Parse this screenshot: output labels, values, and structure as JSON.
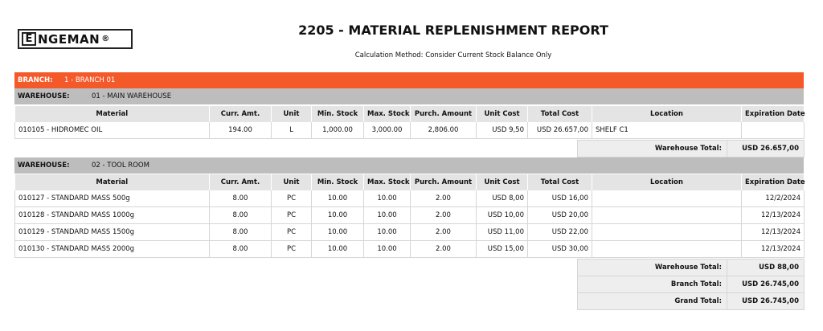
{
  "logo": {
    "e_letter": "E",
    "text": "NGEMAN",
    "reg": "®"
  },
  "report": {
    "title": "2205 - MATERIAL REPLENISHMENT REPORT",
    "subtitle": "Calculation Method: Consider Current Stock Balance Only"
  },
  "branch": {
    "label": "BRANCH:",
    "value": "1 - BRANCH 01"
  },
  "columns": [
    "Material",
    "Curr. Amt.",
    "Unit",
    "Min. Stock",
    "Max. Stock",
    "Purch. Amount",
    "Unit Cost",
    "Total Cost",
    "Location",
    "Expiration Date"
  ],
  "warehouses": [
    {
      "label": "WAREHOUSE:",
      "value": "01 - MAIN WAREHOUSE",
      "rows": [
        [
          "010105 - HIDROMEC OIL",
          "194.00",
          "L",
          "1,000.00",
          "3,000.00",
          "2,806.00",
          "USD 9,50",
          "USD 26.657,00",
          "SHELF C1",
          ""
        ]
      ],
      "total_label": "Warehouse Total:",
      "total_value": "USD 26.657,00"
    },
    {
      "label": "WAREHOUSE:",
      "value": "02 - TOOL ROOM",
      "rows": [
        [
          "010127 - STANDARD MASS 500g",
          "8.00",
          "PC",
          "10.00",
          "10.00",
          "2.00",
          "USD 8,00",
          "USD 16,00",
          "",
          "12/2/2024"
        ],
        [
          "010128 - STANDARD MASS 1000g",
          "8.00",
          "PC",
          "10.00",
          "10.00",
          "2.00",
          "USD 10,00",
          "USD 20,00",
          "",
          "12/13/2024"
        ],
        [
          "010129 - STANDARD MASS 1500g",
          "8.00",
          "PC",
          "10.00",
          "10.00",
          "2.00",
          "USD 11,00",
          "USD 22,00",
          "",
          "12/13/2024"
        ],
        [
          "010130 - STANDARD MASS 2000g",
          "8.00",
          "PC",
          "10.00",
          "10.00",
          "2.00",
          "USD 15,00",
          "USD 30,00",
          "",
          "12/13/2024"
        ]
      ],
      "total_label": "Warehouse Total:",
      "total_value": "USD 88,00"
    }
  ],
  "branch_total": {
    "label": "Branch Total:",
    "value": "USD 26.745,00"
  },
  "grand_total": {
    "label": "Grand Total:",
    "value": "USD 26.745,00"
  },
  "colors": {
    "branch_bar": "#f4592a",
    "warehouse_bar": "#bdbdbd",
    "header_bg": "#e4e4e4"
  }
}
